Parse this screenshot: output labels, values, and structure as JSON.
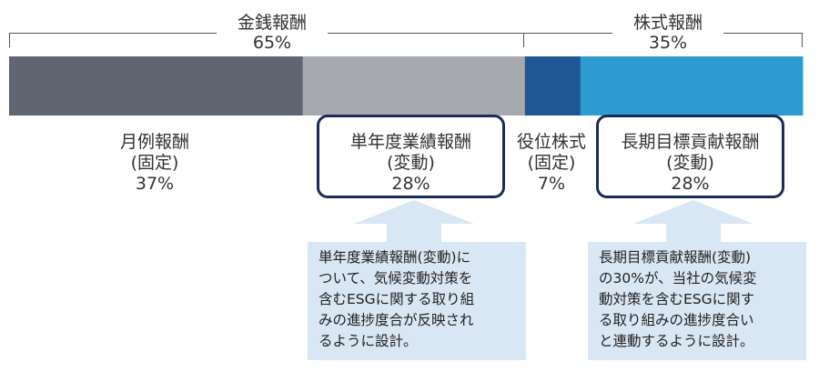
{
  "groups": [
    {
      "name": "金銭報酬",
      "percent": "65%"
    },
    {
      "name": "株式報酬",
      "percent": "35%"
    }
  ],
  "chart_data": {
    "type": "bar",
    "orientation": "horizontal-stacked",
    "unit": "%",
    "segments": [
      {
        "label": "月例報酬",
        "sub": "(固定)",
        "value": 37,
        "percent_label": "37%",
        "color": "#5f6571",
        "group": "金銭報酬"
      },
      {
        "label": "単年度業績報酬",
        "sub": "(変動)",
        "value": 28,
        "percent_label": "28%",
        "color": "#a6aaae",
        "group": "金銭報酬"
      },
      {
        "label": "役位株式",
        "sub": "(固定)",
        "value": 7,
        "percent_label": "7%",
        "color": "#1f5796",
        "group": "株式報酬"
      },
      {
        "label": "長期目標貢献報酬",
        "sub": "(変動)",
        "value": 28,
        "percent_label": "28%",
        "color": "#2b9bd0",
        "group": "株式報酬"
      }
    ]
  },
  "notes": {
    "left": [
      "単年度業績報酬(変動)に",
      "ついて、気候変動対策を",
      "含むESGに関する取り組",
      "みの進捗度合が反映され",
      "るように設計。"
    ],
    "right": [
      "長期目標貢献報酬(変動)",
      "の30%が、当社の気候変",
      "動対策を含むESGに関す",
      "る取り組みの進捗度合い",
      "と連動するように設計。"
    ]
  },
  "colors": {
    "callout_border": "#1a2a5a",
    "note_bg": "#d9e6f3",
    "arrow": "#d9e6f3"
  }
}
